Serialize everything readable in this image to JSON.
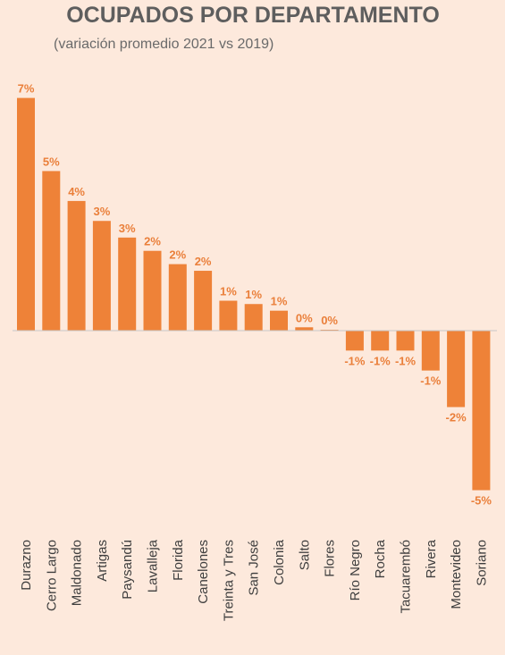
{
  "chart_data": {
    "type": "bar",
    "title": "OCUPADOS POR DEPARTAMENTO",
    "subtitle": "(variación promedio 2021 vs 2019)",
    "xlabel": "",
    "ylabel": "",
    "categories": [
      "Durazno",
      "Cerro Largo",
      "Maldonado",
      "Artigas",
      "Paysandú",
      "Lavalleja",
      "Florida",
      "Canelones",
      "Treinta y Tres",
      "San José",
      "Colonia",
      "Salto",
      "Flores",
      "Río Negro",
      "Rocha",
      "Tacuarembó",
      "Rivera",
      "Montevideo",
      "Soriano"
    ],
    "values": [
      7.0,
      4.8,
      3.9,
      3.3,
      2.8,
      2.4,
      2.0,
      1.8,
      0.9,
      0.8,
      0.6,
      0.1,
      0.0,
      -0.6,
      -0.6,
      -0.6,
      -1.2,
      -2.3,
      -4.8
    ],
    "data_labels": [
      "7%",
      "5%",
      "4%",
      "3%",
      "3%",
      "2%",
      "2%",
      "2%",
      "1%",
      "1%",
      "1%",
      "0%",
      "0%",
      "-1%",
      "-1%",
      "-1%",
      "-1%",
      "-2%",
      "-5%"
    ],
    "ylim": [
      -5,
      7.5
    ],
    "grid": false,
    "legend": "none",
    "colors": {
      "bar": "#ee8238",
      "baseline": "#c8c8c8",
      "background": "#fde9dc"
    }
  }
}
